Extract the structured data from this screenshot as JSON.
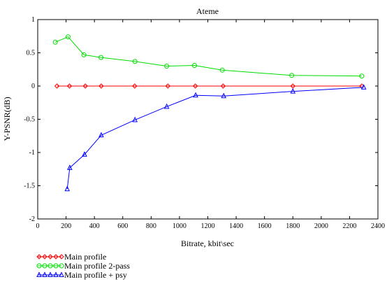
{
  "chart_data": {
    "type": "line",
    "title": "Ateme",
    "xlabel": "Bitrate, kbit\\sec",
    "ylabel": "Y-PSNR(dB)",
    "xlim": [
      0,
      2400
    ],
    "ylim": [
      -2,
      1
    ],
    "xticks": [
      0,
      200,
      400,
      600,
      800,
      1000,
      1200,
      1400,
      1600,
      1800,
      2000,
      2200,
      2400
    ],
    "yticks": [
      1,
      0.5,
      0,
      -0.5,
      -1,
      -1.5,
      -2
    ],
    "grid": false,
    "legend_position": "bottom-left",
    "series": [
      {
        "name": "Main profile",
        "color": "#ff0000",
        "marker": "diamond",
        "x": [
          136,
          224,
          336,
          448,
          684,
          918,
          1112,
          1308,
          1800,
          2286
        ],
        "y": [
          0,
          0,
          0,
          0,
          0,
          0,
          0,
          0,
          0,
          0
        ]
      },
      {
        "name": "Main profile 2-pass",
        "color": "#00dd00",
        "marker": "circle",
        "x": [
          124,
          214,
          326,
          446,
          686,
          910,
          1106,
          1302,
          1792,
          2286
        ],
        "y": [
          0.66,
          0.74,
          0.47,
          0.43,
          0.37,
          0.3,
          0.31,
          0.24,
          0.16,
          0.15
        ]
      },
      {
        "name": "Main profile + psy",
        "color": "#0000ff",
        "marker": "triangle",
        "x": [
          208,
          226,
          330,
          448,
          686,
          910,
          1114,
          1312,
          1800,
          2300
        ],
        "y": [
          -1.55,
          -1.23,
          -1.03,
          -0.74,
          -0.51,
          -0.31,
          -0.14,
          -0.15,
          -0.08,
          -0.02
        ]
      }
    ]
  }
}
